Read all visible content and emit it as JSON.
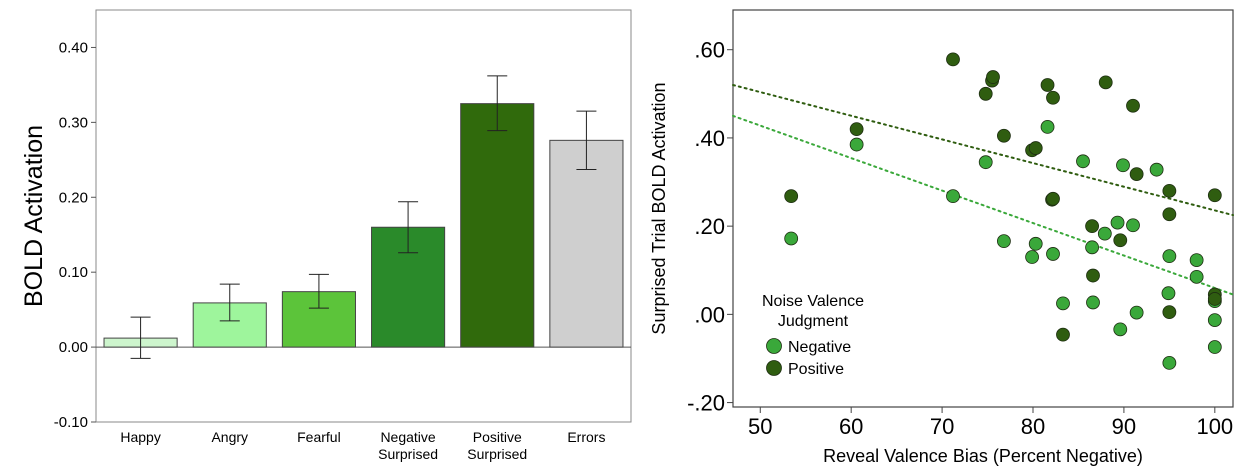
{
  "chart_data": [
    {
      "type": "bar",
      "ylabel": "BOLD Activation",
      "ylim": [
        -0.1,
        0.45
      ],
      "yticks": [
        -0.1,
        0.0,
        0.1,
        0.2,
        0.3,
        0.4
      ],
      "ytick_labels": [
        "-0.10",
        "0.00",
        "0.10",
        "0.20",
        "0.30",
        "0.40"
      ],
      "grid": false,
      "categories": [
        {
          "lines": [
            "Happy"
          ]
        },
        {
          "lines": [
            "Angry"
          ]
        },
        {
          "lines": [
            "Fearful"
          ]
        },
        {
          "lines": [
            "Negative",
            "Surprised"
          ]
        },
        {
          "lines": [
            "Positive",
            "Surprised"
          ]
        },
        {
          "lines": [
            "Errors"
          ]
        }
      ],
      "values": [
        0.012,
        0.059,
        0.074,
        0.16,
        0.325,
        0.276
      ],
      "error_low": [
        -0.015,
        0.035,
        0.052,
        0.126,
        0.289,
        0.237
      ],
      "error_high": [
        0.04,
        0.084,
        0.097,
        0.194,
        0.362,
        0.315
      ],
      "colors": [
        "#cdf5cd",
        "#9ef59c",
        "#5cc43a",
        "#2a8a2a",
        "#306a0c",
        "#cfcfcf"
      ]
    },
    {
      "type": "scatter",
      "xlabel": "Reveal Valence Bias (Percent Negative)",
      "ylabel": "Surprised Trial BOLD Activation",
      "xlim": [
        47,
        102
      ],
      "ylim": [
        -0.21,
        0.69
      ],
      "xticks": [
        50,
        60,
        70,
        80,
        90,
        100
      ],
      "xtick_labels": [
        "50",
        "60",
        "70",
        "80",
        "90",
        "100"
      ],
      "yticks": [
        0.6,
        0.4,
        0.2,
        0.0,
        -0.2
      ],
      "ytick_labels": [
        ".60",
        ".40",
        ".20",
        ".00",
        "-.20"
      ],
      "grid": false,
      "legend": {
        "title_lines": [
          "Noise Valence",
          "Judgment"
        ],
        "placement": "bottom-left"
      },
      "series": [
        {
          "name": "Negative",
          "color": "#3aa83a",
          "trend": {
            "x": [
              47,
              102
            ],
            "y": [
              0.45,
              0.045
            ]
          },
          "points": [
            [
              53.4,
              0.172
            ],
            [
              60.6,
              0.385
            ],
            [
              71.2,
              0.268
            ],
            [
              74.8,
              0.345
            ],
            [
              76.8,
              0.166
            ],
            [
              79.9,
              0.13
            ],
            [
              80.3,
              0.16
            ],
            [
              81.6,
              0.425
            ],
            [
              82.2,
              0.137
            ],
            [
              83.3,
              0.025
            ],
            [
              85.5,
              0.347
            ],
            [
              86.5,
              0.152
            ],
            [
              86.6,
              0.027
            ],
            [
              87.9,
              0.183
            ],
            [
              89.3,
              0.208
            ],
            [
              89.6,
              -0.034
            ],
            [
              89.9,
              0.338
            ],
            [
              91.0,
              0.202
            ],
            [
              91.4,
              0.004
            ],
            [
              93.6,
              0.328
            ],
            [
              94.9,
              0.048
            ],
            [
              95.0,
              0.132
            ],
            [
              95.0,
              -0.11
            ],
            [
              98.0,
              0.123
            ],
            [
              98.0,
              0.085
            ],
            [
              100.0,
              -0.013
            ],
            [
              100.0,
              -0.074
            ],
            [
              100.0,
              0.03
            ]
          ]
        },
        {
          "name": "Positive",
          "color": "#2f5d10",
          "trend": {
            "x": [
              47,
              102
            ],
            "y": [
              0.52,
              0.225
            ]
          },
          "points": [
            [
              53.4,
              0.268
            ],
            [
              60.6,
              0.42
            ],
            [
              71.2,
              0.578
            ],
            [
              74.8,
              0.5
            ],
            [
              75.5,
              0.53
            ],
            [
              75.6,
              0.538
            ],
            [
              76.8,
              0.405
            ],
            [
              79.9,
              0.372
            ],
            [
              80.3,
              0.377
            ],
            [
              81.6,
              0.52
            ],
            [
              82.2,
              0.491
            ],
            [
              82.1,
              0.26
            ],
            [
              82.2,
              0.262
            ],
            [
              83.3,
              -0.046
            ],
            [
              86.5,
              0.2
            ],
            [
              86.6,
              0.088
            ],
            [
              88.0,
              0.526
            ],
            [
              89.6,
              0.168
            ],
            [
              91.0,
              0.473
            ],
            [
              91.4,
              0.318
            ],
            [
              95.0,
              0.28
            ],
            [
              95.0,
              0.227
            ],
            [
              95.0,
              0.005
            ],
            [
              100.0,
              0.27
            ],
            [
              100.0,
              0.045
            ],
            [
              100.0,
              0.035
            ]
          ]
        }
      ]
    }
  ]
}
